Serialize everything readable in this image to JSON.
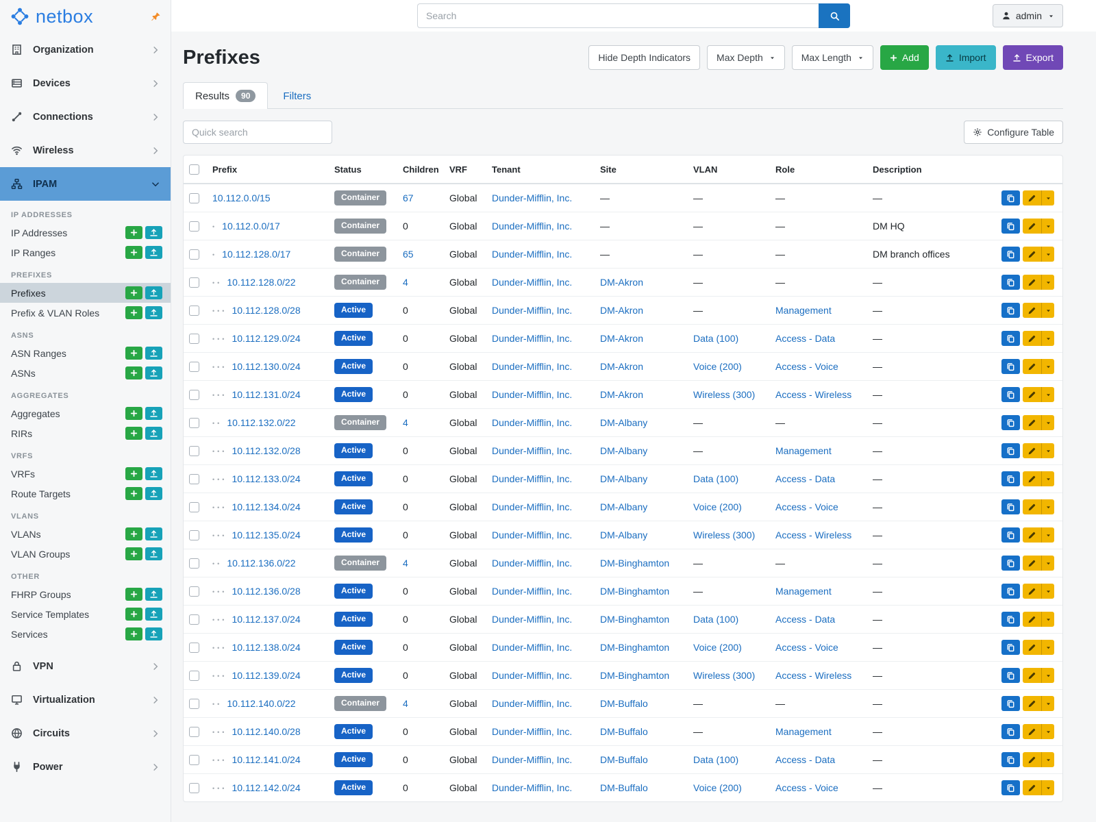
{
  "colors": {
    "brand": "#2a7de1",
    "pin": "#f28c28",
    "link": "#1a6dc0",
    "search_btn": "#1a73c0",
    "sidebar_active_bg": "#5b9cd6",
    "sidebar_active_text": "#10304e",
    "subitem_active_bg": "#ccd5dc",
    "add_green": "#28a745",
    "mini_import": "#17a2b8",
    "import_teal": "#3ab6c9",
    "export_purple": "#7048b6",
    "badge_active": "#1763c6",
    "badge_container": "#8d959d",
    "btn_clone": "#1670c8",
    "btn_edit": "#f2b600",
    "results_badge": "#8f98a0"
  },
  "icons": {
    "search-icon": "magnifier",
    "user-icon": "person",
    "pin-sidebar-icon": "pushpin",
    "gear-icon": "gear",
    "edit-icon": "pencil",
    "clone-icon": "copy",
    "caret-down-icon": "caret",
    "plus-icon": "plus",
    "import-icon": "upload-arrow",
    "export-icon": "upload-arrow"
  },
  "header": {
    "search_placeholder": "Search",
    "user_label": "admin"
  },
  "sidebar": {
    "brand": "netbox",
    "nav": [
      {
        "label": "Organization",
        "icon": "building"
      },
      {
        "label": "Devices",
        "icon": "devices"
      },
      {
        "label": "Connections",
        "icon": "connections"
      },
      {
        "label": "Wireless",
        "icon": "wireless"
      },
      {
        "label": "IPAM",
        "icon": "ipam",
        "active": true,
        "expanded": true,
        "groups": [
          {
            "heading": "IP ADDRESSES",
            "items": [
              {
                "label": "IP Addresses"
              },
              {
                "label": "IP Ranges"
              }
            ]
          },
          {
            "heading": "PREFIXES",
            "items": [
              {
                "label": "Prefixes",
                "active": true
              },
              {
                "label": "Prefix & VLAN Roles"
              }
            ]
          },
          {
            "heading": "ASNS",
            "items": [
              {
                "label": "ASN Ranges"
              },
              {
                "label": "ASNs"
              }
            ]
          },
          {
            "heading": "AGGREGATES",
            "items": [
              {
                "label": "Aggregates"
              },
              {
                "label": "RIRs"
              }
            ]
          },
          {
            "heading": "VRFS",
            "items": [
              {
                "label": "VRFs"
              },
              {
                "label": "Route Targets"
              }
            ]
          },
          {
            "heading": "VLANS",
            "items": [
              {
                "label": "VLANs"
              },
              {
                "label": "VLAN Groups"
              }
            ]
          },
          {
            "heading": "OTHER",
            "items": [
              {
                "label": "FHRP Groups"
              },
              {
                "label": "Service Templates"
              },
              {
                "label": "Services"
              }
            ]
          }
        ]
      },
      {
        "label": "VPN",
        "icon": "vpn"
      },
      {
        "label": "Virtualization",
        "icon": "virtualization"
      },
      {
        "label": "Circuits",
        "icon": "circuits"
      },
      {
        "label": "Power",
        "icon": "power"
      }
    ]
  },
  "page": {
    "title": "Prefixes",
    "actions": {
      "hide_depth": "Hide Depth Indicators",
      "max_depth": "Max Depth",
      "max_length": "Max Length",
      "add": "Add",
      "import": "Import",
      "export": "Export"
    },
    "tabs": [
      {
        "label": "Results",
        "badge": "90",
        "active": true
      },
      {
        "label": "Filters"
      }
    ],
    "quick_search_placeholder": "Quick search",
    "configure_table": "Configure Table"
  },
  "table": {
    "columns": [
      "",
      "Prefix",
      "Status",
      "Children",
      "VRF",
      "Tenant",
      "Site",
      "VLAN",
      "Role",
      "Description",
      ""
    ],
    "rows": [
      {
        "depth": 0,
        "prefix": "10.112.0.0/15",
        "status": "Container",
        "children": "67",
        "children_link": true,
        "vrf": "Global",
        "tenant": "Dunder-Mifflin, Inc.",
        "site": "—",
        "vlan": "—",
        "role": "—",
        "description": "—"
      },
      {
        "depth": 1,
        "prefix": "10.112.0.0/17",
        "status": "Container",
        "children": "0",
        "children_link": false,
        "vrf": "Global",
        "tenant": "Dunder-Mifflin, Inc.",
        "site": "—",
        "vlan": "—",
        "role": "—",
        "description": "DM HQ"
      },
      {
        "depth": 1,
        "prefix": "10.112.128.0/17",
        "status": "Container",
        "children": "65",
        "children_link": true,
        "vrf": "Global",
        "tenant": "Dunder-Mifflin, Inc.",
        "site": "—",
        "vlan": "—",
        "role": "—",
        "description": "DM branch offices"
      },
      {
        "depth": 2,
        "prefix": "10.112.128.0/22",
        "status": "Container",
        "children": "4",
        "children_link": true,
        "vrf": "Global",
        "tenant": "Dunder-Mifflin, Inc.",
        "site": "DM-Akron",
        "vlan": "—",
        "role": "—",
        "description": "—"
      },
      {
        "depth": 3,
        "prefix": "10.112.128.0/28",
        "status": "Active",
        "children": "0",
        "children_link": false,
        "vrf": "Global",
        "tenant": "Dunder-Mifflin, Inc.",
        "site": "DM-Akron",
        "vlan": "—",
        "role": "Management",
        "description": "—"
      },
      {
        "depth": 3,
        "prefix": "10.112.129.0/24",
        "status": "Active",
        "children": "0",
        "children_link": false,
        "vrf": "Global",
        "tenant": "Dunder-Mifflin, Inc.",
        "site": "DM-Akron",
        "vlan": "Data (100)",
        "role": "Access - Data",
        "description": "—"
      },
      {
        "depth": 3,
        "prefix": "10.112.130.0/24",
        "status": "Active",
        "children": "0",
        "children_link": false,
        "vrf": "Global",
        "tenant": "Dunder-Mifflin, Inc.",
        "site": "DM-Akron",
        "vlan": "Voice (200)",
        "role": "Access - Voice",
        "description": "—"
      },
      {
        "depth": 3,
        "prefix": "10.112.131.0/24",
        "status": "Active",
        "children": "0",
        "children_link": false,
        "vrf": "Global",
        "tenant": "Dunder-Mifflin, Inc.",
        "site": "DM-Akron",
        "vlan": "Wireless (300)",
        "role": "Access - Wireless",
        "description": "—"
      },
      {
        "depth": 2,
        "prefix": "10.112.132.0/22",
        "status": "Container",
        "children": "4",
        "children_link": true,
        "vrf": "Global",
        "tenant": "Dunder-Mifflin, Inc.",
        "site": "DM-Albany",
        "vlan": "—",
        "role": "—",
        "description": "—"
      },
      {
        "depth": 3,
        "prefix": "10.112.132.0/28",
        "status": "Active",
        "children": "0",
        "children_link": false,
        "vrf": "Global",
        "tenant": "Dunder-Mifflin, Inc.",
        "site": "DM-Albany",
        "vlan": "—",
        "role": "Management",
        "description": "—"
      },
      {
        "depth": 3,
        "prefix": "10.112.133.0/24",
        "status": "Active",
        "children": "0",
        "children_link": false,
        "vrf": "Global",
        "tenant": "Dunder-Mifflin, Inc.",
        "site": "DM-Albany",
        "vlan": "Data (100)",
        "role": "Access - Data",
        "description": "—"
      },
      {
        "depth": 3,
        "prefix": "10.112.134.0/24",
        "status": "Active",
        "children": "0",
        "children_link": false,
        "vrf": "Global",
        "tenant": "Dunder-Mifflin, Inc.",
        "site": "DM-Albany",
        "vlan": "Voice (200)",
        "role": "Access - Voice",
        "description": "—"
      },
      {
        "depth": 3,
        "prefix": "10.112.135.0/24",
        "status": "Active",
        "children": "0",
        "children_link": false,
        "vrf": "Global",
        "tenant": "Dunder-Mifflin, Inc.",
        "site": "DM-Albany",
        "vlan": "Wireless (300)",
        "role": "Access - Wireless",
        "description": "—"
      },
      {
        "depth": 2,
        "prefix": "10.112.136.0/22",
        "status": "Container",
        "children": "4",
        "children_link": true,
        "vrf": "Global",
        "tenant": "Dunder-Mifflin, Inc.",
        "site": "DM-Binghamton",
        "vlan": "—",
        "role": "—",
        "description": "—"
      },
      {
        "depth": 3,
        "prefix": "10.112.136.0/28",
        "status": "Active",
        "children": "0",
        "children_link": false,
        "vrf": "Global",
        "tenant": "Dunder-Mifflin, Inc.",
        "site": "DM-Binghamton",
        "vlan": "—",
        "role": "Management",
        "description": "—"
      },
      {
        "depth": 3,
        "prefix": "10.112.137.0/24",
        "status": "Active",
        "children": "0",
        "children_link": false,
        "vrf": "Global",
        "tenant": "Dunder-Mifflin, Inc.",
        "site": "DM-Binghamton",
        "vlan": "Data (100)",
        "role": "Access - Data",
        "description": "—"
      },
      {
        "depth": 3,
        "prefix": "10.112.138.0/24",
        "status": "Active",
        "children": "0",
        "children_link": false,
        "vrf": "Global",
        "tenant": "Dunder-Mifflin, Inc.",
        "site": "DM-Binghamton",
        "vlan": "Voice (200)",
        "role": "Access - Voice",
        "description": "—"
      },
      {
        "depth": 3,
        "prefix": "10.112.139.0/24",
        "status": "Active",
        "children": "0",
        "children_link": false,
        "vrf": "Global",
        "tenant": "Dunder-Mifflin, Inc.",
        "site": "DM-Binghamton",
        "vlan": "Wireless (300)",
        "role": "Access - Wireless",
        "description": "—"
      },
      {
        "depth": 2,
        "prefix": "10.112.140.0/22",
        "status": "Container",
        "children": "4",
        "children_link": true,
        "vrf": "Global",
        "tenant": "Dunder-Mifflin, Inc.",
        "site": "DM-Buffalo",
        "vlan": "—",
        "role": "—",
        "description": "—"
      },
      {
        "depth": 3,
        "prefix": "10.112.140.0/28",
        "status": "Active",
        "children": "0",
        "children_link": false,
        "vrf": "Global",
        "tenant": "Dunder-Mifflin, Inc.",
        "site": "DM-Buffalo",
        "vlan": "—",
        "role": "Management",
        "description": "—"
      },
      {
        "depth": 3,
        "prefix": "10.112.141.0/24",
        "status": "Active",
        "children": "0",
        "children_link": false,
        "vrf": "Global",
        "tenant": "Dunder-Mifflin, Inc.",
        "site": "DM-Buffalo",
        "vlan": "Data (100)",
        "role": "Access - Data",
        "description": "—"
      },
      {
        "depth": 3,
        "prefix": "10.112.142.0/24",
        "status": "Active",
        "children": "0",
        "children_link": false,
        "vrf": "Global",
        "tenant": "Dunder-Mifflin, Inc.",
        "site": "DM-Buffalo",
        "vlan": "Voice (200)",
        "role": "Access - Voice",
        "description": "—"
      }
    ]
  }
}
